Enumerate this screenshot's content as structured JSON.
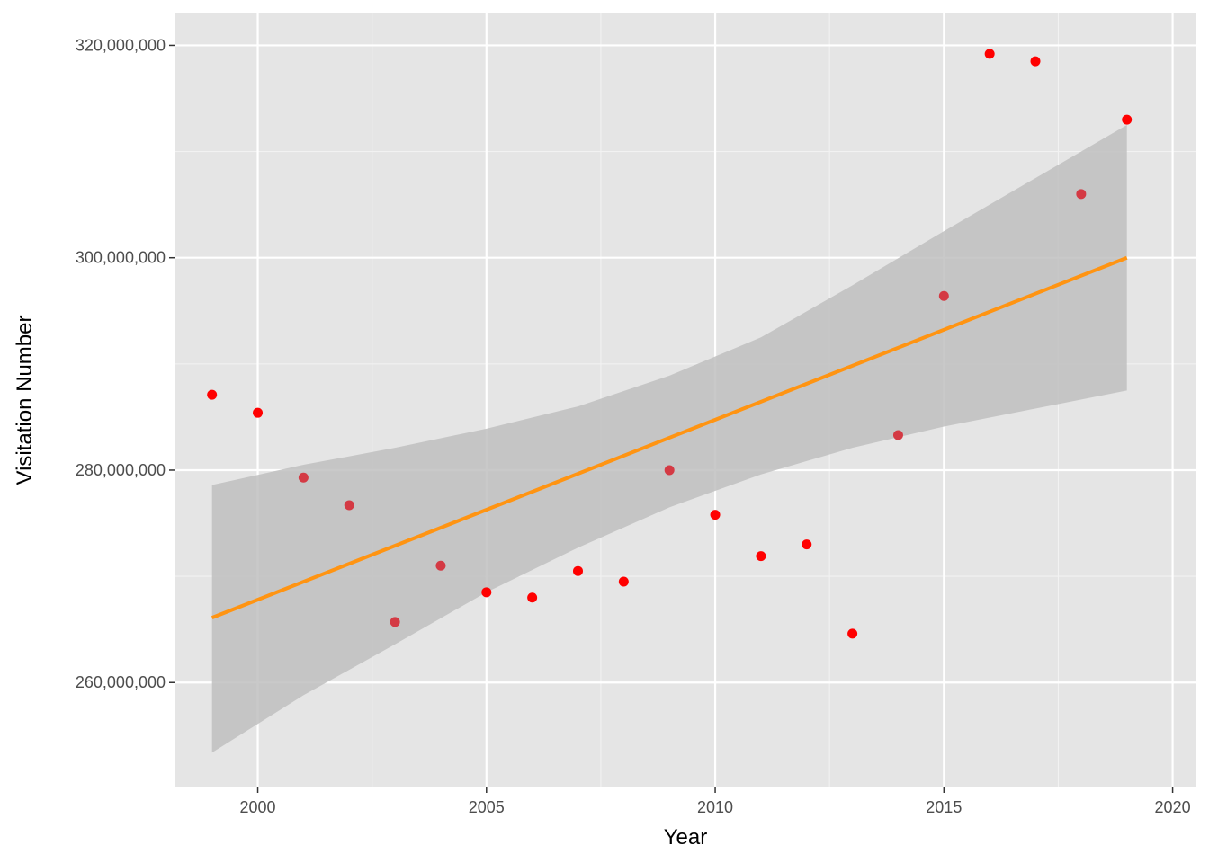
{
  "chart_data": {
    "type": "scatter",
    "xlabel": "Year",
    "ylabel": "Visitation Number",
    "xlim": [
      1998.2,
      2020.5
    ],
    "ylim": [
      250200000,
      323000000
    ],
    "x_ticks": [
      2000,
      2005,
      2010,
      2015,
      2020
    ],
    "x_tick_labels": [
      "2000",
      "2005",
      "2010",
      "2015",
      "2020"
    ],
    "y_ticks": [
      260000000,
      280000000,
      300000000,
      320000000
    ],
    "y_tick_labels": [
      "260,000,000",
      "280,000,000",
      "300,000,000",
      "320,000,000"
    ],
    "grid": true,
    "points": [
      {
        "x": 1999,
        "y": 287100000,
        "color": "#ff0000"
      },
      {
        "x": 2000,
        "y": 285400000,
        "color": "#ff0000"
      },
      {
        "x": 2001,
        "y": 279300000,
        "color": "#d43a44"
      },
      {
        "x": 2002,
        "y": 276700000,
        "color": "#d43a44"
      },
      {
        "x": 2003,
        "y": 265700000,
        "color": "#d43a44"
      },
      {
        "x": 2004,
        "y": 271000000,
        "color": "#d43a44"
      },
      {
        "x": 2005,
        "y": 268500000,
        "color": "#ff0000"
      },
      {
        "x": 2006,
        "y": 268000000,
        "color": "#ff0000"
      },
      {
        "x": 2007,
        "y": 270500000,
        "color": "#ff0000"
      },
      {
        "x": 2008,
        "y": 269500000,
        "color": "#ff0000"
      },
      {
        "x": 2009,
        "y": 280000000,
        "color": "#d43a44"
      },
      {
        "x": 2010,
        "y": 275800000,
        "color": "#ff0000"
      },
      {
        "x": 2011,
        "y": 271900000,
        "color": "#ff0000"
      },
      {
        "x": 2012,
        "y": 273000000,
        "color": "#ff0000"
      },
      {
        "x": 2013,
        "y": 264600000,
        "color": "#ff0000"
      },
      {
        "x": 2014,
        "y": 283300000,
        "color": "#d43a44"
      },
      {
        "x": 2015,
        "y": 296400000,
        "color": "#d43a44"
      },
      {
        "x": 2016,
        "y": 319200000,
        "color": "#ff0000"
      },
      {
        "x": 2017,
        "y": 318500000,
        "color": "#ff0000"
      },
      {
        "x": 2018,
        "y": 306000000,
        "color": "#d43a44"
      },
      {
        "x": 2019,
        "y": 313000000,
        "color": "#ff0000"
      }
    ],
    "trend_line": {
      "x": [
        1999,
        2019
      ],
      "y": [
        266100000,
        300000000
      ],
      "color": "#ff9412"
    },
    "confidence_band": {
      "x": [
        1999,
        2001,
        2003,
        2005,
        2007,
        2009,
        2011,
        2013,
        2015,
        2017,
        2019
      ],
      "upper": [
        278600000,
        280500000,
        282100000,
        283900000,
        286000000,
        288900000,
        292500000,
        297400000,
        302500000,
        307500000,
        312500000
      ],
      "lower": [
        253400000,
        258800000,
        263600000,
        268500000,
        272700000,
        276500000,
        279600000,
        282100000,
        284100000,
        285800000,
        287500000
      ],
      "color": "#bfbfbf"
    },
    "colors": {
      "panel_background": "#e5e5e5",
      "grid_major": "#ffffff",
      "grid_minor": "#f2f2f2",
      "tick_text": "#4d4d4d",
      "tick_mark": "#333333"
    }
  }
}
